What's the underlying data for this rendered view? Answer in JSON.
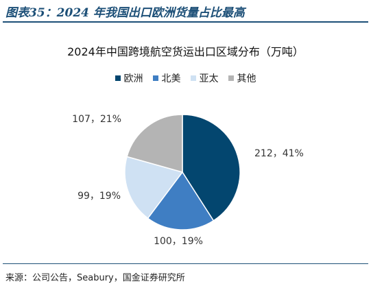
{
  "figure_title": "图表35：2024 年我国出口欧洲货量占比最高",
  "source": "来源：公司公告，Seabury，国金证券研究所",
  "chart_data": {
    "type": "pie",
    "title": "2024年中国跨境航空货运出口区域分布（万吨）",
    "legend_position": "top",
    "slices": [
      {
        "name": "欧洲",
        "value": 212,
        "percent": 41,
        "label": "212，41%",
        "color": "#03466f"
      },
      {
        "name": "北美",
        "value": 100,
        "percent": 19,
        "label": "100，19%",
        "color": "#3f7ec3"
      },
      {
        "name": "亚太",
        "value": 99,
        "percent": 19,
        "label": "99，19%",
        "color": "#cfe1f3"
      },
      {
        "name": "其他",
        "value": 107,
        "percent": 21,
        "label": "107，21%",
        "color": "#b4b4b4"
      }
    ]
  }
}
